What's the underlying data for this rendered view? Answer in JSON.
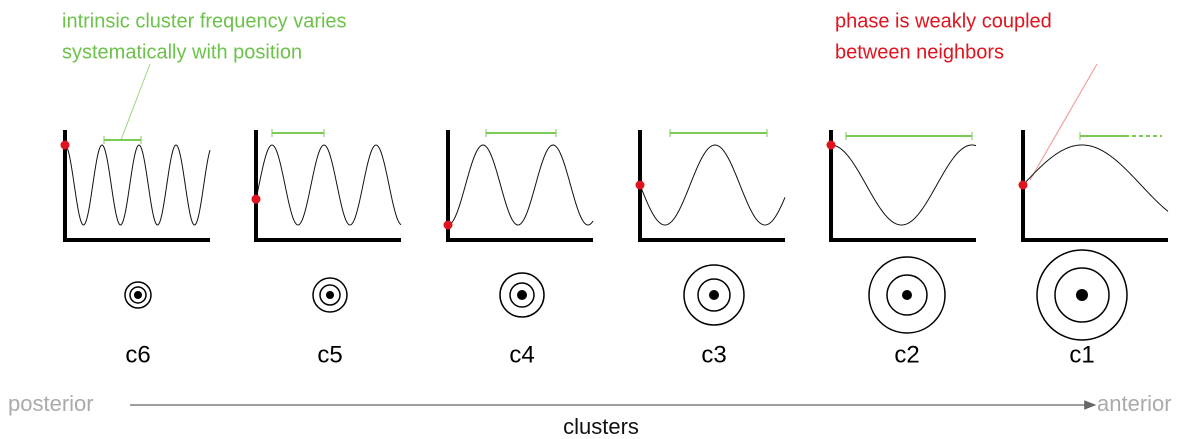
{
  "annotations": {
    "frequency": [
      "intrinsic cluster frequency varies",
      "systematically with position"
    ],
    "phase": [
      "phase is weakly coupled",
      "between neighbors"
    ]
  },
  "clusters": [
    "c6",
    "c5",
    "c4",
    "c3",
    "c2",
    "c1"
  ],
  "axis": {
    "start": "posterior",
    "end": "anterior",
    "label": "clusters"
  }
}
